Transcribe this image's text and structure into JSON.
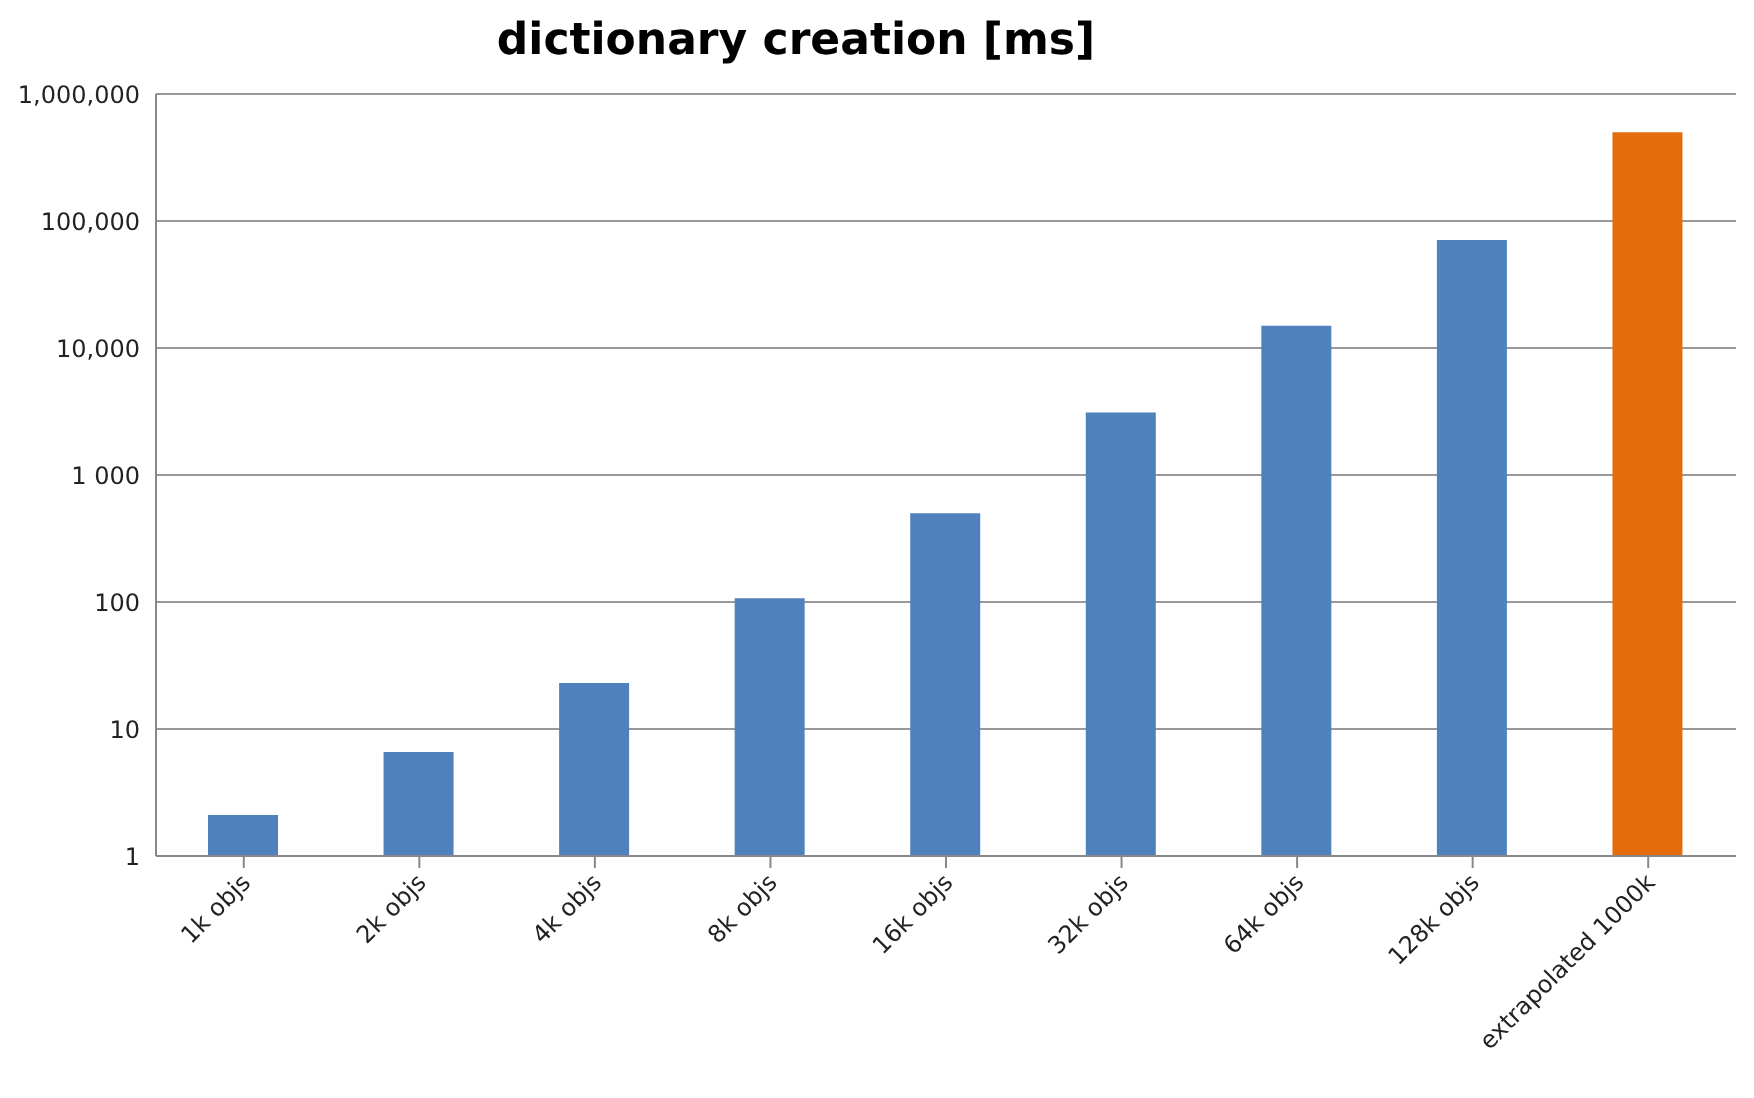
{
  "chart_data": {
    "type": "bar",
    "title": "dictionary creation [ms]",
    "categories": [
      "1k objs",
      "2k objs",
      "4k objs",
      "8k objs",
      "16k objs",
      "32k objs",
      "64k objs",
      "128k objs",
      "extrapolated 1000k"
    ],
    "values": [
      2.1,
      6.6,
      23,
      107,
      500,
      3100,
      15000,
      71000,
      500000
    ],
    "colors": [
      "#4f81bd",
      "#4f81bd",
      "#4f81bd",
      "#4f81bd",
      "#4f81bd",
      "#4f81bd",
      "#4f81bd",
      "#4f81bd",
      "#e46c0a"
    ],
    "log": "y",
    "ylim": [
      1,
      1000000
    ],
    "yticks": [
      1,
      10,
      100,
      {
        "value": 1000,
        "label": "1 000"
      },
      {
        "value": 10000,
        "label": "10,000"
      },
      {
        "value": 100000,
        "label": "100,000"
      },
      {
        "value": 1000000,
        "label": "1,000,000"
      }
    ],
    "grid": "y",
    "legend": false
  }
}
